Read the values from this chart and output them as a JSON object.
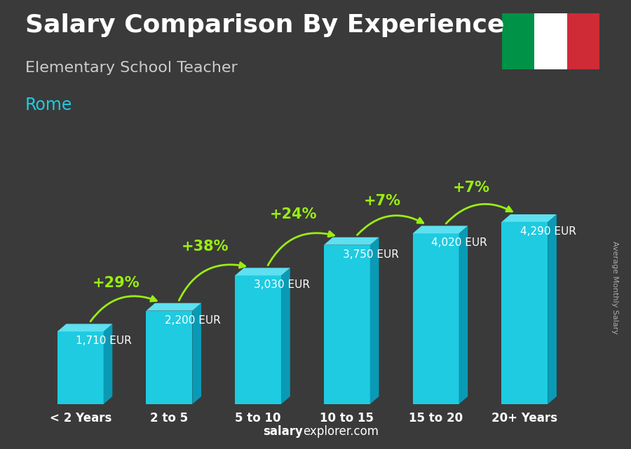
{
  "title": "Salary Comparison By Experience",
  "subtitle": "Elementary School Teacher",
  "city": "Rome",
  "categories": [
    "< 2 Years",
    "2 to 5",
    "5 to 10",
    "10 to 15",
    "15 to 20",
    "20+ Years"
  ],
  "values": [
    1710,
    2200,
    3030,
    3750,
    4020,
    4290
  ],
  "labels": [
    "1,710 EUR",
    "2,200 EUR",
    "3,030 EUR",
    "3,750 EUR",
    "4,020 EUR",
    "4,290 EUR"
  ],
  "pct_changes": [
    null,
    "+29%",
    "+38%",
    "+24%",
    "+7%",
    "+7%"
  ],
  "bar_color_face": "#1ecbe1",
  "bar_color_top": "#5de0f0",
  "bar_color_side": "#0a9ab5",
  "arrow_color": "#99ee11",
  "pct_color": "#99ee11",
  "title_color": "#ffffff",
  "subtitle_color": "#cccccc",
  "city_color": "#1ecbe1",
  "label_color": "#ffffff",
  "bg_color": "#3a3a3a",
  "bottom_text_salary": "salary",
  "bottom_text_rest": "explorer.com",
  "ylabel": "Average Monthly Salary",
  "ylim": [
    0,
    5500
  ],
  "flag_colors": [
    "#009246",
    "#ffffff",
    "#ce2b37"
  ],
  "title_fontsize": 26,
  "subtitle_fontsize": 16,
  "city_fontsize": 17,
  "label_fontsize": 11,
  "pct_fontsize": 15,
  "xlabel_fontsize": 12
}
